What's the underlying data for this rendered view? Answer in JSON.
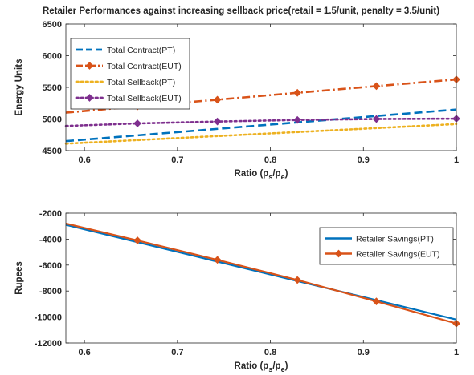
{
  "figure": {
    "title": "Retailer Performances against increasing sellback price(retail = 1.5/unit, penalty = 3.5/unit)"
  },
  "chart_data": [
    {
      "type": "line",
      "title": "Retailer Performances against increasing sellback price(retail = 1.5/unit, penalty = 3.5/unit)",
      "xlabel": "Ratio (p_s/p_e)",
      "xlabel_main": "Ratio (p",
      "xlabel_sub1": "s",
      "xlabel_mid": "/p",
      "xlabel_sub2": "e",
      "xlabel_end": ")",
      "ylabel": "Energy Units",
      "xlim": [
        0.58,
        1.0
      ],
      "ylim": [
        4500,
        6500
      ],
      "xticks": [
        0.6,
        0.7,
        0.8,
        0.9,
        1.0
      ],
      "xtick_labels": [
        "0.6",
        "0.7",
        "0.8",
        "0.9",
        "1"
      ],
      "yticks": [
        4500,
        5000,
        5500,
        6000,
        6500
      ],
      "ytick_labels": [
        "4500",
        "5000",
        "5500",
        "6000",
        "6500"
      ],
      "grid": false,
      "legend_position": "top-left",
      "series": [
        {
          "name": "Total Contract(PT)",
          "color": "#0072BD",
          "style": "dashed",
          "marker": "none",
          "x": [
            0.58,
            1.0
          ],
          "y": [
            4650,
            5150
          ]
        },
        {
          "name": "Total Contract(EUT)",
          "color": "#D95319",
          "style": "dashdot",
          "marker": "diamond",
          "x": [
            0.58,
            0.657,
            0.743,
            0.829,
            0.914,
            1.0
          ],
          "y": [
            5100,
            5200,
            5305,
            5415,
            5520,
            5625
          ]
        },
        {
          "name": "Total Sellback(PT)",
          "color": "#EDB120",
          "style": "dotted",
          "marker": "none",
          "x": [
            0.58,
            1.0
          ],
          "y": [
            4610,
            4920
          ]
        },
        {
          "name": "Total Sellback(EUT)",
          "color": "#7E2F8E",
          "style": "dotted",
          "marker": "diamond",
          "x": [
            0.58,
            0.657,
            0.743,
            0.829,
            0.914,
            1.0
          ],
          "y": [
            4890,
            4930,
            4960,
            4985,
            5000,
            5005
          ]
        }
      ]
    },
    {
      "type": "line",
      "xlabel": "Ratio (p_s/p_e)",
      "xlabel_main": "Ratio (p",
      "xlabel_sub1": "s",
      "xlabel_mid": "/p",
      "xlabel_sub2": "e",
      "xlabel_end": ")",
      "ylabel": "Rupees",
      "xlim": [
        0.58,
        1.0
      ],
      "ylim": [
        -12000,
        -2000
      ],
      "xticks": [
        0.6,
        0.7,
        0.8,
        0.9,
        1.0
      ],
      "xtick_labels": [
        "0.6",
        "0.7",
        "0.8",
        "0.9",
        "1"
      ],
      "yticks": [
        -12000,
        -10000,
        -8000,
        -6000,
        -4000,
        -2000
      ],
      "ytick_labels": [
        "-12000",
        "-10000",
        "-8000",
        "-6000",
        "-4000",
        "-2000"
      ],
      "grid": false,
      "legend_position": "top-right",
      "series": [
        {
          "name": "Retailer Savings(PT)",
          "color": "#0072BD",
          "style": "solid",
          "marker": "none",
          "x": [
            0.58,
            1.0
          ],
          "y": [
            -2900,
            -10200
          ]
        },
        {
          "name": "Retailer Savings(EUT)",
          "color": "#D95319",
          "style": "solid",
          "marker": "diamond",
          "x": [
            0.58,
            0.657,
            0.743,
            0.829,
            0.914,
            1.0
          ],
          "y": [
            -2800,
            -4100,
            -5600,
            -7150,
            -8800,
            -10500
          ]
        }
      ]
    }
  ]
}
